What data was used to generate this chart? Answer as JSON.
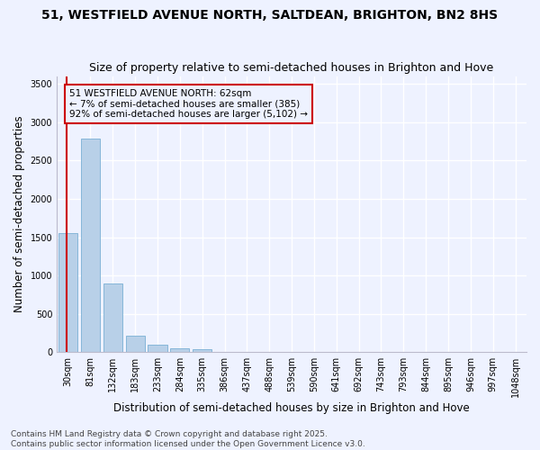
{
  "title": "51, WESTFIELD AVENUE NORTH, SALTDEAN, BRIGHTON, BN2 8HS",
  "subtitle": "Size of property relative to semi-detached houses in Brighton and Hove",
  "xlabel": "Distribution of semi-detached houses by size in Brighton and Hove",
  "ylabel": "Number of semi-detached properties",
  "bin_labels": [
    "30sqm",
    "81sqm",
    "132sqm",
    "183sqm",
    "233sqm",
    "284sqm",
    "335sqm",
    "386sqm",
    "437sqm",
    "488sqm",
    "539sqm",
    "590sqm",
    "641sqm",
    "692sqm",
    "743sqm",
    "793sqm",
    "844sqm",
    "895sqm",
    "946sqm",
    "997sqm",
    "1048sqm"
  ],
  "bar_heights": [
    1550,
    2780,
    900,
    215,
    100,
    55,
    40,
    0,
    0,
    0,
    0,
    0,
    0,
    0,
    0,
    0,
    0,
    0,
    0,
    0,
    0
  ],
  "bar_color": "#b8d0e8",
  "bar_edge_color": "#7aafd4",
  "bar_width": 0.85,
  "ylim": [
    0,
    3600
  ],
  "yticks": [
    0,
    500,
    1000,
    1500,
    2000,
    2500,
    3000,
    3500
  ],
  "property_line_x": -0.5,
  "property_line_color": "#cc0000",
  "annotation_text": "51 WESTFIELD AVENUE NORTH: 62sqm\n← 7% of semi-detached houses are smaller (385)\n92% of semi-detached houses are larger (5,102) →",
  "annotation_box_color": "#cc0000",
  "background_color": "#eef2ff",
  "grid_color": "#ffffff",
  "footer_text": "Contains HM Land Registry data © Crown copyright and database right 2025.\nContains public sector information licensed under the Open Government Licence v3.0.",
  "title_fontsize": 10,
  "subtitle_fontsize": 9,
  "ylabel_fontsize": 8.5,
  "xlabel_fontsize": 8.5,
  "tick_fontsize": 7,
  "annotation_fontsize": 7.5,
  "footer_fontsize": 6.5
}
